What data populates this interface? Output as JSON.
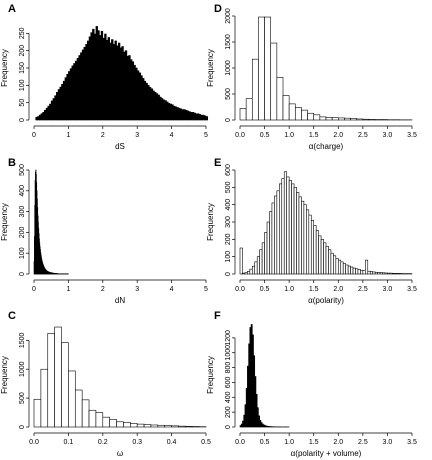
{
  "chart_data": [
    {
      "panel": "A",
      "type": "bar",
      "xlabel": "dS",
      "ylabel": "Frequency",
      "xlim": [
        0,
        5
      ],
      "ylim": [
        0,
        300
      ],
      "x_ticks": [
        0,
        1,
        2,
        3,
        4,
        5
      ],
      "y_ticks": [
        0,
        50,
        100,
        150,
        200,
        250
      ],
      "bin_start": 0.05,
      "bin_width": 0.05,
      "values": [
        8,
        10,
        14,
        18,
        22,
        28,
        34,
        40,
        46,
        55,
        62,
        70,
        80,
        88,
        95,
        103,
        112,
        122,
        132,
        140,
        148,
        156,
        163,
        170,
        178,
        186,
        194,
        202,
        210,
        218,
        228,
        240,
        252,
        262,
        248,
        270,
        258,
        244,
        256,
        236,
        248,
        230,
        238,
        222,
        232,
        218,
        228,
        214,
        222,
        208,
        212,
        196,
        200,
        184,
        186,
        174,
        168,
        158,
        150,
        142,
        136,
        128,
        120,
        112,
        106,
        100,
        94,
        90,
        84,
        80,
        76,
        72,
        66,
        62,
        58,
        56,
        52,
        48,
        46,
        44,
        40,
        38,
        36,
        34,
        32,
        30,
        30,
        28,
        26,
        24,
        22,
        22,
        20,
        18,
        18,
        16,
        14,
        14,
        12,
        10
      ]
    },
    {
      "panel": "B",
      "type": "bar",
      "xlabel": "dN",
      "ylabel": "Frequency",
      "xlim": [
        0,
        5
      ],
      "ylim": [
        0,
        500
      ],
      "x_ticks": [
        0,
        1,
        2,
        3,
        4,
        5
      ],
      "y_ticks": [
        0,
        100,
        200,
        300,
        400,
        500
      ],
      "bin_start": 0.0,
      "bin_width": 0.01,
      "values": [
        60,
        180,
        330,
        450,
        490,
        500,
        480,
        440,
        400,
        360,
        320,
        280,
        250,
        220,
        195,
        170,
        150,
        132,
        118,
        104,
        92,
        82,
        72,
        64,
        57,
        51,
        46,
        41,
        37,
        33,
        30,
        27,
        24,
        22,
        20,
        18,
        16,
        15,
        14,
        13,
        12,
        11,
        10,
        9,
        9,
        8,
        8,
        7,
        7,
        6,
        6,
        6,
        5,
        5,
        5,
        4,
        4,
        4,
        3,
        3,
        3,
        3,
        3,
        2,
        2,
        2,
        2,
        2,
        2,
        2,
        1,
        1,
        1,
        1,
        1,
        1,
        1,
        1,
        1,
        1,
        1,
        1,
        1,
        1,
        1,
        1,
        1,
        1,
        1,
        1,
        1,
        1,
        1,
        1,
        1,
        1,
        1,
        1,
        1,
        1
      ]
    },
    {
      "panel": "C",
      "type": "bar",
      "xlabel": "ω",
      "ylabel": "Frequency",
      "xlim": [
        0,
        0.5
      ],
      "ylim": [
        0,
        1800
      ],
      "x_ticks": [
        0.0,
        0.1,
        0.2,
        0.3,
        0.4,
        0.5
      ],
      "y_ticks": [
        0,
        500,
        1000,
        1500
      ],
      "bin_start": 0.0,
      "bin_width": 0.02,
      "values": [
        480,
        1000,
        1620,
        1730,
        1460,
        970,
        640,
        470,
        290,
        250,
        170,
        130,
        90,
        80,
        60,
        50,
        40,
        35,
        30,
        25,
        20,
        15,
        10,
        8,
        5
      ]
    },
    {
      "panel": "D",
      "type": "bar",
      "xlabel": "α(charge)",
      "ylabel": "Frequency",
      "xlim": [
        0,
        3.5
      ],
      "ylim": [
        0,
        2000
      ],
      "x_ticks": [
        0.0,
        0.5,
        1.0,
        1.5,
        2.0,
        2.5,
        3.0,
        3.5
      ],
      "y_ticks": [
        0,
        500,
        1000,
        1500,
        2000
      ],
      "bin_start": 0.0,
      "bin_width": 0.125,
      "values": [
        220,
        410,
        1170,
        1980,
        1980,
        1480,
        820,
        470,
        310,
        240,
        190,
        130,
        100,
        60,
        50,
        45,
        40,
        35,
        30,
        20,
        15,
        10,
        8,
        8,
        5,
        5,
        3,
        3
      ]
    },
    {
      "panel": "E",
      "type": "bar",
      "xlabel": "α(polarity)",
      "ylabel": "Frequency",
      "xlim": [
        0,
        3.5
      ],
      "ylim": [
        0,
        600
      ],
      "x_ticks": [
        0.0,
        0.5,
        1.0,
        1.5,
        2.0,
        2.5,
        3.0,
        3.5
      ],
      "y_ticks": [
        0,
        100,
        200,
        300,
        400,
        500,
        600
      ],
      "bin_start": 0.0,
      "bin_width": 0.05,
      "values": [
        150,
        5,
        8,
        15,
        28,
        45,
        70,
        100,
        140,
        180,
        240,
        300,
        360,
        410,
        450,
        480,
        520,
        550,
        590,
        560,
        540,
        520,
        500,
        470,
        445,
        420,
        400,
        370,
        340,
        310,
        280,
        250,
        220,
        200,
        180,
        160,
        140,
        120,
        105,
        90,
        80,
        70,
        60,
        52,
        46,
        40,
        34,
        30,
        26,
        22,
        20,
        80,
        16,
        14,
        12,
        10,
        9,
        8,
        7,
        6,
        5,
        5,
        4,
        4,
        3,
        3,
        2,
        2,
        2,
        2
      ]
    },
    {
      "panel": "F",
      "type": "bar",
      "xlabel": "α(polarity + volume)",
      "ylabel": "Frequency",
      "xlim": [
        0,
        3.5
      ],
      "ylim": [
        0,
        1400
      ],
      "x_ticks": [
        0.0,
        0.5,
        1.0,
        1.5,
        2.0,
        2.5,
        3.0,
        3.5
      ],
      "y_ticks": [
        0,
        200,
        400,
        600,
        800,
        1000,
        1200
      ],
      "bin_start": 0.0,
      "bin_width": 0.025,
      "values": [
        20,
        40,
        80,
        160,
        300,
        520,
        820,
        1120,
        1340,
        1380,
        1240,
        960,
        680,
        440,
        260,
        150,
        90,
        60,
        40,
        28,
        20,
        15,
        10,
        8,
        6,
        5,
        4,
        3,
        3,
        2,
        2,
        2,
        2,
        1,
        1,
        1,
        1,
        1,
        1,
        1
      ]
    }
  ]
}
